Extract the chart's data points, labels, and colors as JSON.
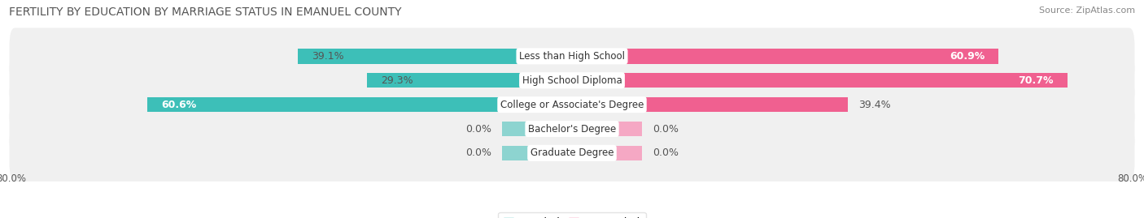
{
  "title": "FERTILITY BY EDUCATION BY MARRIAGE STATUS IN EMANUEL COUNTY",
  "source": "Source: ZipAtlas.com",
  "categories": [
    "Less than High School",
    "High School Diploma",
    "College or Associate's Degree",
    "Bachelor's Degree",
    "Graduate Degree"
  ],
  "married": [
    39.1,
    29.3,
    60.6,
    0.0,
    0.0
  ],
  "unmarried": [
    60.9,
    70.7,
    39.4,
    0.0,
    0.0
  ],
  "married_color_strong": "#3DBFB8",
  "married_color_light": "#8DD4D0",
  "unmarried_color_strong": "#F06090",
  "unmarried_color_light": "#F5A8C4",
  "bar_height": 0.62,
  "xlim_left": -80,
  "xlim_right": 80,
  "bg_color": "#ffffff",
  "row_bg_color": "#f0f0f0",
  "row_separator_color": "#ffffff",
  "title_fontsize": 10,
  "source_fontsize": 8,
  "label_fontsize": 9,
  "category_fontsize": 8.5,
  "legend_fontsize": 9,
  "axis_label_fontsize": 8.5,
  "zero_bar_width": 10,
  "strong_threshold": 20
}
